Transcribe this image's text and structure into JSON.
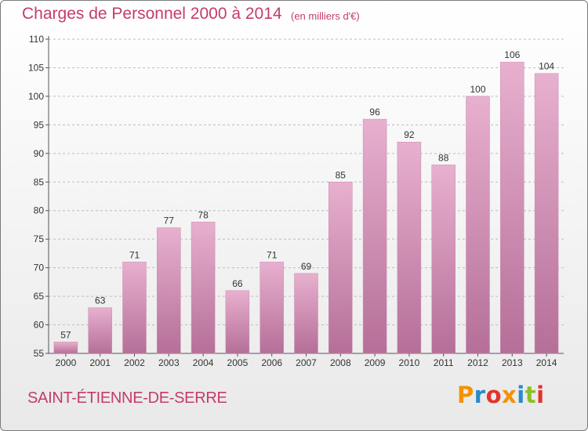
{
  "header": {
    "title": "Charges de Personnel 2000 à 2014",
    "subtitle": "(en milliers d'€)"
  },
  "footer": {
    "commune": "SAINT-ÉTIENNE-DE-SERRE"
  },
  "logo": {
    "letters": [
      "P",
      "r",
      "o",
      "x",
      "i",
      "t",
      "i"
    ],
    "colors": [
      "#f39200",
      "#2a8ac8",
      "#e4322b",
      "#f39200",
      "#2a8ac8",
      "#8cbf26",
      "#e4322b"
    ]
  },
  "colors": {
    "bar_light": "#e8b0cf",
    "bar_dark": "#b56f98",
    "title": "#c43b6e",
    "grid": "#bdbdbd"
  },
  "chart_data": {
    "type": "bar",
    "title": "Charges de Personnel 2000 à 2014",
    "subtitle": "(en milliers d'€)",
    "categories": [
      "2000",
      "2001",
      "2002",
      "2003",
      "2004",
      "2005",
      "2006",
      "2007",
      "2008",
      "2009",
      "2010",
      "2011",
      "2012",
      "2013",
      "2014"
    ],
    "values": [
      57,
      63,
      71,
      77,
      78,
      66,
      71,
      69,
      85,
      96,
      92,
      88,
      100,
      106,
      104
    ],
    "ylim": [
      55,
      110
    ],
    "yticks": [
      55,
      60,
      65,
      70,
      75,
      80,
      85,
      90,
      95,
      100,
      105,
      110
    ],
    "grid": true,
    "xlabel": "",
    "ylabel": ""
  }
}
